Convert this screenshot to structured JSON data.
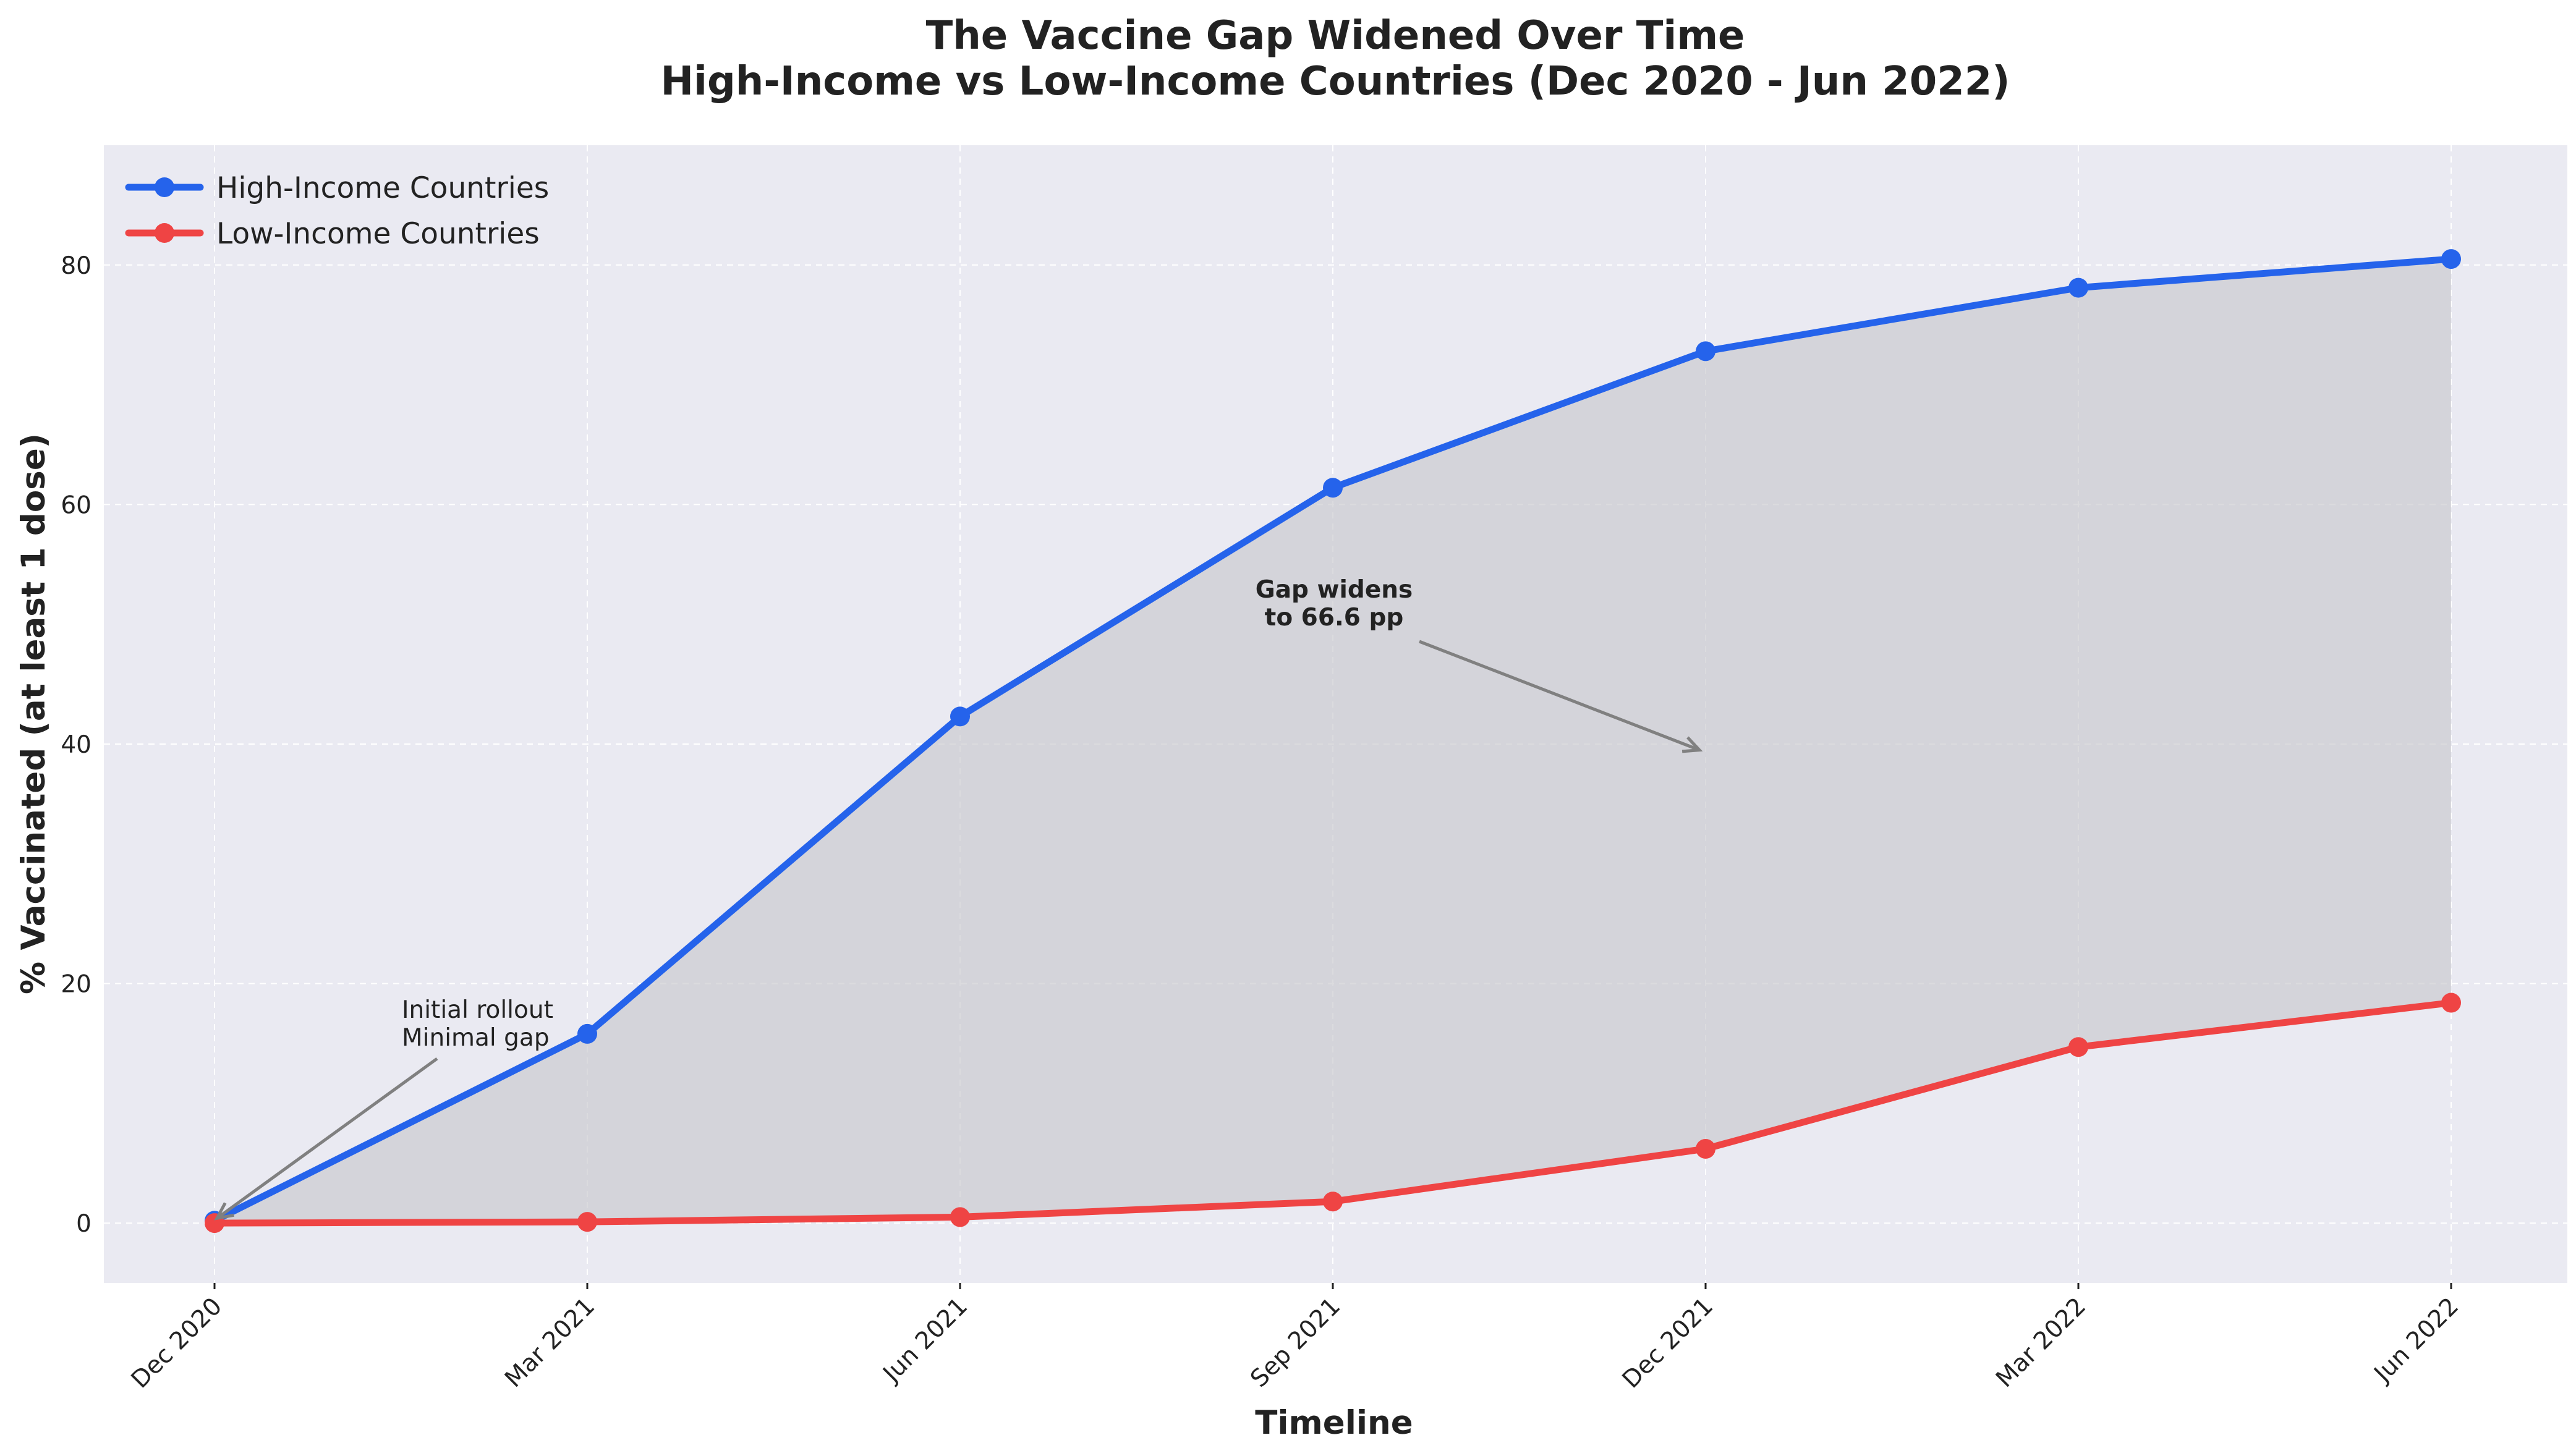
{
  "chart_data": {
    "type": "line",
    "title": "The Vaccine Gap Widened Over Time",
    "subtitle": "High-Income vs Low-Income Countries (Dec 2020 - Jun 2022)",
    "xlabel": "Timeline",
    "ylabel": "% Vaccinated (at least 1 dose)",
    "categories": [
      "Dec 2020",
      "Mar 2021",
      "Jun 2021",
      "Sep 2021",
      "Dec 2021",
      "Mar 2022",
      "Jun 2022"
    ],
    "ylim": [
      -5,
      90
    ],
    "yticks": [
      0,
      20,
      40,
      60,
      80
    ],
    "grid": true,
    "legend_position": "top-left",
    "series": [
      {
        "name": "High-Income Countries",
        "color": "#2563eb",
        "values": [
          0.2,
          15.8,
          42.3,
          61.4,
          72.8,
          78.1,
          80.5
        ]
      },
      {
        "name": "Low-Income Countries",
        "color": "#ef4444",
        "values": [
          0.0,
          0.1,
          0.5,
          1.8,
          6.2,
          14.7,
          18.4
        ]
      }
    ],
    "gap_fill_color": "#c7c7cc",
    "annotations": [
      {
        "lines": [
          "Initial rollout",
          "Minimal gap"
        ],
        "bold": false,
        "point": {
          "x_index": 0,
          "y": 0.2
        }
      },
      {
        "lines": [
          "Gap widens",
          "to 66.6 pp"
        ],
        "bold": true,
        "point": {
          "x_index": 4,
          "y": 39.5
        }
      }
    ]
  }
}
